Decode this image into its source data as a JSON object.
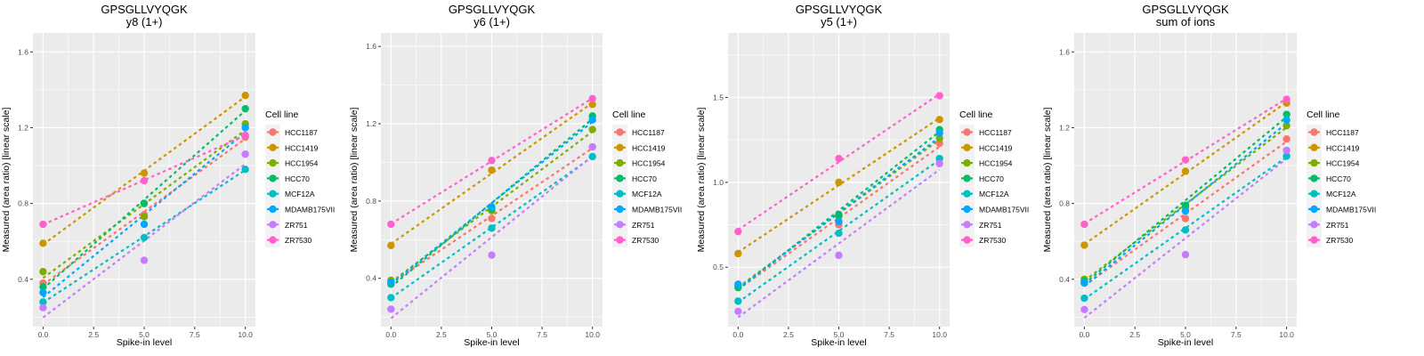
{
  "chart_data": [
    {
      "type": "scatter",
      "title": "GPSGLLVYQGK",
      "subtitle": "y8 (1+)",
      "xlabel": "Spike-in level",
      "ylabel": "Measured (area ratio) [linear scale]",
      "xlim": [
        -0.5,
        10.5
      ],
      "ylim": [
        0.15,
        1.7
      ],
      "xticks": [
        "0.0",
        "2.5",
        "5.0",
        "7.5",
        "10.0"
      ],
      "yticks": [
        "0.4",
        "0.8",
        "1.2",
        "1.6"
      ],
      "legend": {
        "title": "Cell line",
        "position": "right"
      },
      "fit": "linear, dashed",
      "grid": true,
      "x": [
        0,
        5,
        10
      ],
      "series": [
        {
          "name": "HCC1187",
          "color": "#F8766D",
          "values": [
            0.38,
            0.74,
            1.15
          ]
        },
        {
          "name": "HCC1419",
          "color": "#CD9600",
          "values": [
            0.59,
            0.96,
            1.37
          ]
        },
        {
          "name": "HCC1954",
          "color": "#7CAE00",
          "values": [
            0.44,
            0.73,
            1.22
          ]
        },
        {
          "name": "HCC70",
          "color": "#00BE67",
          "values": [
            0.36,
            0.8,
            1.3
          ]
        },
        {
          "name": "MCF12A",
          "color": "#00BFC4",
          "values": [
            0.28,
            0.62,
            0.98
          ]
        },
        {
          "name": "MDAMB175VII",
          "color": "#00A9FF",
          "values": [
            0.33,
            0.69,
            1.2
          ]
        },
        {
          "name": "ZR751",
          "color": "#C77CFF",
          "values": [
            0.25,
            0.5,
            1.06
          ]
        },
        {
          "name": "ZR7530",
          "color": "#FF61CC",
          "values": [
            0.69,
            0.92,
            1.16
          ]
        }
      ]
    },
    {
      "type": "scatter",
      "title": "GPSGLLVYQGK",
      "subtitle": "y6 (1+)",
      "xlabel": "Spike-in level",
      "ylabel": "Measured (area ratio) [linear scale]",
      "xlim": [
        -0.5,
        10.5
      ],
      "ylim": [
        0.15,
        1.67
      ],
      "xticks": [
        "0.0",
        "2.5",
        "5.0",
        "7.5",
        "10.0"
      ],
      "yticks": [
        "0.4",
        "0.8",
        "1.2",
        "1.6"
      ],
      "legend": {
        "title": "Cell line",
        "position": "right"
      },
      "fit": "linear, dashed",
      "grid": true,
      "x": [
        0,
        5,
        10
      ],
      "series": [
        {
          "name": "HCC1187",
          "color": "#F8766D",
          "values": [
            0.38,
            0.71,
            1.08
          ]
        },
        {
          "name": "HCC1419",
          "color": "#CD9600",
          "values": [
            0.57,
            0.96,
            1.3
          ]
        },
        {
          "name": "HCC1954",
          "color": "#7CAE00",
          "values": [
            0.39,
            0.75,
            1.17
          ]
        },
        {
          "name": "HCC70",
          "color": "#00BE67",
          "values": [
            0.37,
            0.76,
            1.24
          ]
        },
        {
          "name": "MCF12A",
          "color": "#00BFC4",
          "values": [
            0.3,
            0.66,
            1.03
          ]
        },
        {
          "name": "MDAMB175VII",
          "color": "#00A9FF",
          "values": [
            0.38,
            0.77,
            1.22
          ]
        },
        {
          "name": "ZR751",
          "color": "#C77CFF",
          "values": [
            0.24,
            0.52,
            1.08
          ]
        },
        {
          "name": "ZR7530",
          "color": "#FF61CC",
          "values": [
            0.68,
            1.01,
            1.33
          ]
        }
      ]
    },
    {
      "type": "scatter",
      "title": "GPSGLLVYQGK",
      "subtitle": "y5 (1+)",
      "xlabel": "Spike-in level",
      "ylabel": "Measured (area ratio) [linear scale]",
      "xlim": [
        -0.5,
        10.5
      ],
      "ylim": [
        0.15,
        1.88
      ],
      "xticks": [
        "0.0",
        "2.5",
        "5.0",
        "7.5",
        "10.0"
      ],
      "yticks": [
        "0.5",
        "1.0",
        "1.5"
      ],
      "legend": {
        "title": "Cell line",
        "position": "right"
      },
      "fit": "linear, dashed",
      "grid": true,
      "x": [
        0,
        5,
        10
      ],
      "series": [
        {
          "name": "HCC1187",
          "color": "#F8766D",
          "values": [
            0.39,
            0.75,
            1.23
          ]
        },
        {
          "name": "HCC1419",
          "color": "#CD9600",
          "values": [
            0.58,
            1.0,
            1.37
          ]
        },
        {
          "name": "HCC1954",
          "color": "#7CAE00",
          "values": [
            0.39,
            0.8,
            1.26
          ]
        },
        {
          "name": "HCC70",
          "color": "#00BE67",
          "values": [
            0.38,
            0.81,
            1.31
          ]
        },
        {
          "name": "MCF12A",
          "color": "#00BFC4",
          "values": [
            0.3,
            0.7,
            1.14
          ]
        },
        {
          "name": "MDAMB175VII",
          "color": "#00A9FF",
          "values": [
            0.4,
            0.77,
            1.29
          ]
        },
        {
          "name": "ZR751",
          "color": "#C77CFF",
          "values": [
            0.24,
            0.57,
            1.11
          ]
        },
        {
          "name": "ZR7530",
          "color": "#FF61CC",
          "values": [
            0.71,
            1.14,
            1.51
          ]
        }
      ]
    },
    {
      "type": "scatter",
      "title": "GPSGLLVYQGK",
      "subtitle": "sum of ions",
      "xlabel": "Spike-in level",
      "ylabel": "Measured (area ratio) [linear scale]",
      "xlim": [
        -0.5,
        10.5
      ],
      "ylim": [
        0.15,
        1.7
      ],
      "xticks": [
        "0.0",
        "2.5",
        "5.0",
        "7.5",
        "10.0"
      ],
      "yticks": [
        "0.4",
        "0.8",
        "1.2",
        "1.6"
      ],
      "legend": {
        "title": "Cell line",
        "position": "right"
      },
      "fit": "linear, dashed",
      "grid": true,
      "x": [
        0,
        5,
        10
      ],
      "series": [
        {
          "name": "HCC1187",
          "color": "#F8766D",
          "values": [
            0.38,
            0.72,
            1.14
          ]
        },
        {
          "name": "HCC1419",
          "color": "#CD9600",
          "values": [
            0.58,
            0.97,
            1.33
          ]
        },
        {
          "name": "HCC1954",
          "color": "#7CAE00",
          "values": [
            0.4,
            0.78,
            1.21
          ]
        },
        {
          "name": "HCC70",
          "color": "#00BE67",
          "values": [
            0.39,
            0.79,
            1.27
          ]
        },
        {
          "name": "MCF12A",
          "color": "#00BFC4",
          "values": [
            0.3,
            0.66,
            1.05
          ]
        },
        {
          "name": "MDAMB175VII",
          "color": "#00A9FF",
          "values": [
            0.38,
            0.76,
            1.24
          ]
        },
        {
          "name": "ZR751",
          "color": "#C77CFF",
          "values": [
            0.24,
            0.53,
            1.08
          ]
        },
        {
          "name": "ZR7530",
          "color": "#FF61CC",
          "values": [
            0.69,
            1.03,
            1.35
          ]
        }
      ]
    }
  ]
}
